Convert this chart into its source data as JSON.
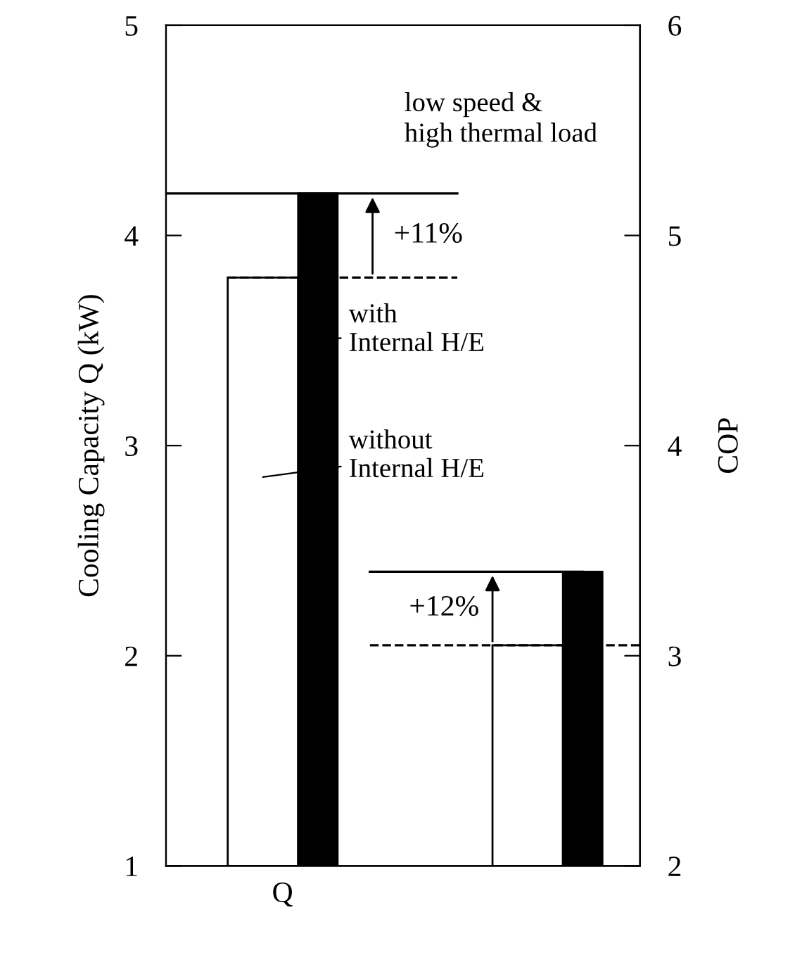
{
  "chart_data": {
    "type": "bar",
    "ylabel": "Cooling Capacity Q (kW)",
    "y2label": "COP",
    "categories": [
      "Q",
      null
    ],
    "series": [
      {
        "color": "#ffffff",
        "values": [
          3.8,
          null
        ]
      },
      {
        "color": "#000000",
        "values": [
          4.2,
          null
        ]
      },
      {
        "color": "#ffffff",
        "values": [
          null,
          3.05
        ],
        "axis": "y2"
      },
      {
        "color": "#000000",
        "values": [
          null,
          3.4
        ],
        "axis": "y2"
      }
    ],
    "ylim": [
      1,
      5
    ],
    "yticks": [
      1,
      2,
      3,
      4,
      5
    ],
    "y2lim": [
      2,
      6
    ],
    "y2ticks": [
      2,
      3,
      4,
      5,
      6
    ],
    "ref_lines": [
      {
        "axis": "y",
        "value": 3.8,
        "line_style": "dashed",
        "color": "#000000"
      },
      {
        "axis": "y",
        "value": 4.2,
        "line_style": "solid",
        "color": "#000000"
      },
      {
        "axis": "y2",
        "value": 3.05,
        "line_style": "dashed",
        "color": "#000000"
      },
      {
        "axis": "y2",
        "value": 3.4,
        "line_style": "solid",
        "color": "#000000"
      }
    ],
    "annotations": [
      "low speed &\nhigh thermal load",
      "+11%",
      "+12%",
      "with\nInternal H/E",
      "without\nInternal H/E"
    ],
    "grid": false
  }
}
